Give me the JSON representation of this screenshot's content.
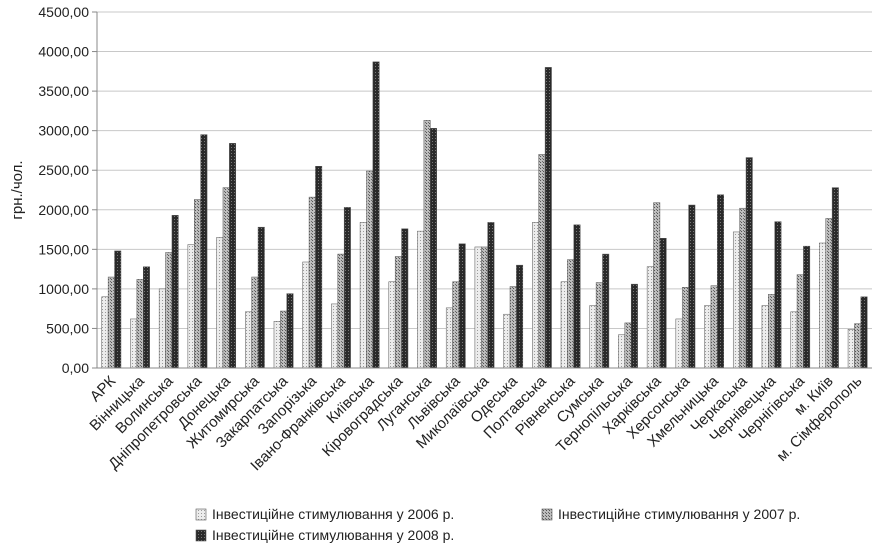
{
  "chart_data": {
    "type": "bar",
    "title": "",
    "xlabel": "",
    "ylabel": "грн./чол.",
    "ylim": [
      0,
      4500
    ],
    "yticks": [
      "0,00",
      "500,00",
      "1000,00",
      "1500,00",
      "2000,00",
      "2500,00",
      "3000,00",
      "3500,00",
      "4000,00",
      "4500,00"
    ],
    "grid": "horizontal",
    "legend_position": "bottom",
    "categories": [
      "АРК",
      "Вінницька",
      "Волинська",
      "Дніпропетровська",
      "Донецька",
      "Житомирська",
      "Закарпатська",
      "Запорізька",
      "Івано-Франківська",
      "Київська",
      "Кіровоградська",
      "Луганська",
      "Львівська",
      "Миколаївська",
      "Одеська",
      "Полтавська",
      "Рівненська",
      "Сумська",
      "Тернопільська",
      "Харківська",
      "Херсонська",
      "Хмельницька",
      "Черкаська",
      "Чернівецька",
      "Чернігівська",
      "м. Київ",
      "м. Сімферополь"
    ],
    "series": [
      {
        "name": "Інвестиційне стимулювання у 2006 р.",
        "color": "#e4e4e4",
        "values": [
          900,
          620,
          1000,
          1560,
          1650,
          710,
          590,
          1340,
          810,
          1840,
          1090,
          1730,
          760,
          1530,
          680,
          1840,
          1090,
          790,
          420,
          1280,
          620,
          790,
          1720,
          790,
          710,
          1580,
          490
        ]
      },
      {
        "name": "Інвестиційне стимулювання у 2007 р.",
        "color": "#a9a9a9",
        "values": [
          1150,
          1120,
          1460,
          2130,
          2280,
          1150,
          720,
          2160,
          1440,
          2490,
          1410,
          3130,
          1090,
          1530,
          1030,
          2700,
          1370,
          1080,
          570,
          2090,
          1020,
          1040,
          2020,
          930,
          1180,
          1890,
          560
        ]
      },
      {
        "name": "Інвестиційне стимулювання у 2008 р.",
        "color": "#333333",
        "values": [
          1480,
          1280,
          1930,
          2950,
          2840,
          1780,
          940,
          2550,
          2030,
          3870,
          1760,
          3030,
          1570,
          1840,
          1300,
          3800,
          1810,
          1440,
          1060,
          1640,
          2060,
          2190,
          2660,
          1850,
          1540,
          2280,
          900
        ]
      }
    ]
  }
}
